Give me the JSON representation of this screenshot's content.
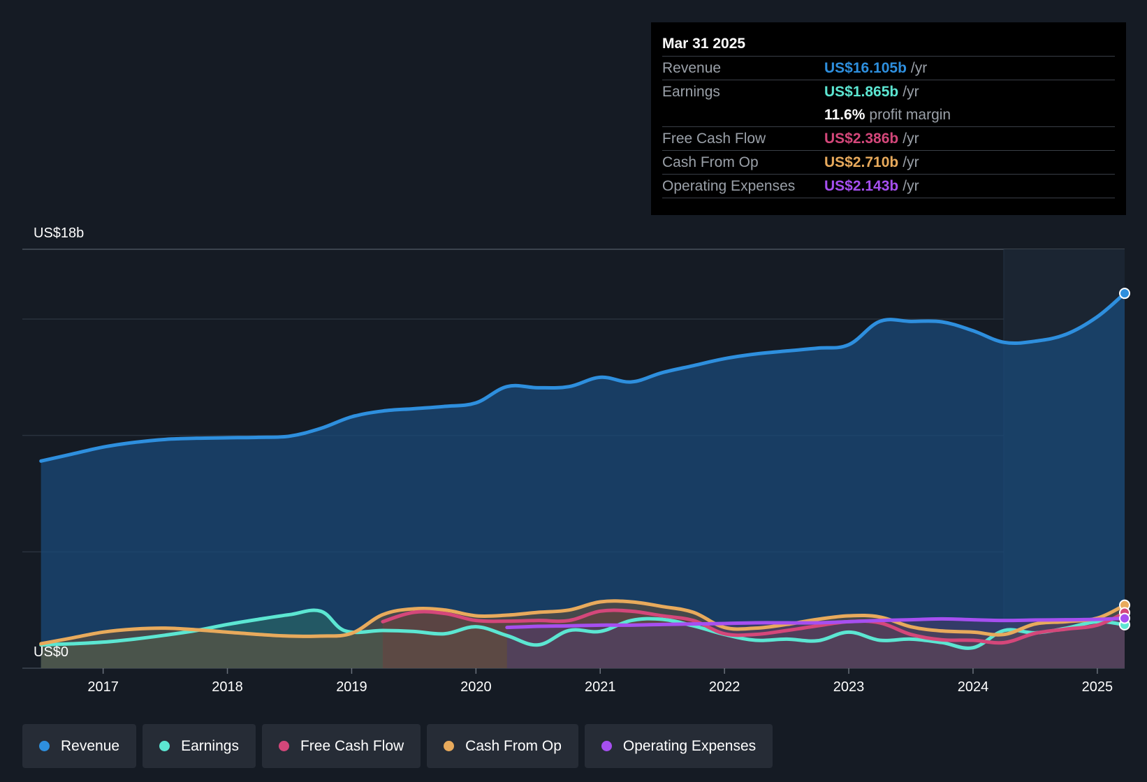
{
  "chart_data": {
    "type": "area",
    "title": "",
    "y_axis_labels": {
      "top": "US$18b",
      "bottom": "US$0"
    },
    "ylim": [
      0,
      18
    ],
    "xlim": [
      2016.35,
      2025.22
    ],
    "x_ticks": [
      "2017",
      "2018",
      "2019",
      "2020",
      "2021",
      "2022",
      "2023",
      "2024",
      "2025"
    ],
    "x_tick_values": [
      2017,
      2018,
      2019,
      2020,
      2021,
      2022,
      2023,
      2024,
      2025
    ],
    "highlight_from": 2024.25,
    "grid": true,
    "legend_position": "bottom-left",
    "series": [
      {
        "name": "Revenue",
        "color": "#2e8fde",
        "fill": "#1a4a78",
        "x": [
          2016.5,
          2016.75,
          2017.0,
          2017.25,
          2017.5,
          2017.75,
          2018.0,
          2018.25,
          2018.5,
          2018.75,
          2019.0,
          2019.25,
          2019.5,
          2019.75,
          2020.0,
          2020.25,
          2020.5,
          2020.75,
          2021.0,
          2021.25,
          2021.5,
          2021.75,
          2022.0,
          2022.25,
          2022.5,
          2022.75,
          2023.0,
          2023.25,
          2023.5,
          2023.75,
          2024.0,
          2024.25,
          2024.5,
          2024.75,
          2025.0,
          2025.22
        ],
        "values": [
          8.9,
          9.2,
          9.5,
          9.7,
          9.83,
          9.88,
          9.9,
          9.92,
          9.97,
          10.3,
          10.8,
          11.05,
          11.15,
          11.25,
          11.4,
          12.1,
          12.05,
          12.1,
          12.5,
          12.3,
          12.7,
          13.0,
          13.3,
          13.5,
          13.63,
          13.75,
          13.9,
          14.9,
          14.9,
          14.88,
          14.5,
          14.0,
          14.05,
          14.35,
          15.1,
          16.105
        ]
      },
      {
        "name": "Earnings",
        "color": "#5ce6d2",
        "fill": "#2d6f66",
        "x": [
          2016.5,
          2016.75,
          2017.0,
          2017.25,
          2017.5,
          2017.75,
          2018.0,
          2018.25,
          2018.5,
          2018.75,
          2018.95,
          2019.25,
          2019.5,
          2019.75,
          2020.0,
          2020.25,
          2020.5,
          2020.75,
          2021.0,
          2021.25,
          2021.5,
          2021.75,
          2022.0,
          2022.25,
          2022.5,
          2022.75,
          2023.0,
          2023.25,
          2023.5,
          2023.75,
          2024.0,
          2024.25,
          2024.5,
          2024.75,
          2025.0,
          2025.22
        ],
        "values": [
          1.0,
          1.05,
          1.12,
          1.25,
          1.42,
          1.62,
          1.88,
          2.1,
          2.3,
          2.45,
          1.6,
          1.62,
          1.58,
          1.48,
          1.78,
          1.4,
          1.0,
          1.62,
          1.58,
          2.05,
          2.1,
          1.82,
          1.45,
          1.2,
          1.25,
          1.18,
          1.55,
          1.2,
          1.25,
          1.1,
          0.88,
          1.62,
          1.52,
          1.72,
          2.0,
          1.865
        ]
      },
      {
        "name": "Free Cash Flow",
        "color": "#d4477a",
        "fill": "#6b2c47",
        "x": [
          2019.25,
          2019.5,
          2019.75,
          2020.0,
          2020.25,
          2020.5,
          2020.75,
          2021.0,
          2021.25,
          2021.5,
          2021.75,
          2022.0,
          2022.25,
          2022.5,
          2022.75,
          2023.0,
          2023.25,
          2023.5,
          2023.75,
          2024.0,
          2024.25,
          2024.5,
          2024.75,
          2025.0,
          2025.22
        ],
        "values": [
          2.0,
          2.4,
          2.35,
          2.05,
          2.02,
          2.05,
          2.05,
          2.45,
          2.45,
          2.25,
          2.05,
          1.48,
          1.45,
          1.62,
          1.82,
          2.0,
          1.95,
          1.45,
          1.22,
          1.2,
          1.1,
          1.5,
          1.68,
          1.85,
          2.386
        ]
      },
      {
        "name": "Cash From Op",
        "color": "#e8aa5c",
        "fill": "#6b5236",
        "x": [
          2016.5,
          2016.75,
          2017.0,
          2017.25,
          2017.5,
          2017.75,
          2018.0,
          2018.25,
          2018.5,
          2018.75,
          2019.0,
          2019.25,
          2019.5,
          2019.75,
          2020.0,
          2020.25,
          2020.5,
          2020.75,
          2021.0,
          2021.25,
          2021.5,
          2021.75,
          2022.0,
          2022.25,
          2022.5,
          2022.75,
          2023.0,
          2023.25,
          2023.5,
          2023.75,
          2024.0,
          2024.25,
          2024.5,
          2024.75,
          2025.0,
          2025.22
        ],
        "values": [
          1.05,
          1.3,
          1.55,
          1.68,
          1.72,
          1.65,
          1.55,
          1.45,
          1.38,
          1.38,
          1.5,
          2.3,
          2.55,
          2.5,
          2.25,
          2.28,
          2.4,
          2.5,
          2.85,
          2.85,
          2.65,
          2.4,
          1.75,
          1.72,
          1.88,
          2.1,
          2.25,
          2.2,
          1.78,
          1.6,
          1.55,
          1.45,
          1.9,
          2.0,
          2.15,
          2.71
        ]
      },
      {
        "name": "Operating Expenses",
        "color": "#a64ff0",
        "fill": "#4a3a6e",
        "x": [
          2020.25,
          2020.5,
          2020.75,
          2021.0,
          2021.25,
          2021.5,
          2021.75,
          2022.0,
          2022.25,
          2022.5,
          2022.75,
          2023.0,
          2023.25,
          2023.5,
          2023.75,
          2024.0,
          2024.25,
          2024.5,
          2024.75,
          2025.0,
          2025.22
        ],
        "values": [
          1.75,
          1.8,
          1.82,
          1.85,
          1.85,
          1.88,
          1.9,
          1.92,
          1.95,
          1.95,
          1.95,
          2.0,
          2.05,
          2.08,
          2.12,
          2.08,
          2.05,
          2.07,
          2.08,
          2.1,
          2.143
        ]
      }
    ]
  },
  "tooltip": {
    "date": "Mar 31 2025",
    "rows": [
      {
        "label": "Revenue",
        "value": "US$16.105b",
        "unit": "/yr",
        "color": "#2e8fde"
      },
      {
        "label": "Earnings",
        "value": "US$1.865b",
        "unit": "/yr",
        "color": "#5ce6d2"
      },
      {
        "label": "",
        "value": "11.6%",
        "unit": "profit margin",
        "color": "#ffffff"
      },
      {
        "label": "Free Cash Flow",
        "value": "US$2.386b",
        "unit": "/yr",
        "color": "#d4477a"
      },
      {
        "label": "Cash From Op",
        "value": "US$2.710b",
        "unit": "/yr",
        "color": "#e8aa5c"
      },
      {
        "label": "Operating Expenses",
        "value": "US$2.143b",
        "unit": "/yr",
        "color": "#a64ff0"
      }
    ]
  },
  "legend": [
    {
      "label": "Revenue",
      "color": "#2e8fde"
    },
    {
      "label": "Earnings",
      "color": "#5ce6d2"
    },
    {
      "label": "Free Cash Flow",
      "color": "#d4477a"
    },
    {
      "label": "Cash From Op",
      "color": "#e8aa5c"
    },
    {
      "label": "Operating Expenses",
      "color": "#a64ff0"
    }
  ]
}
